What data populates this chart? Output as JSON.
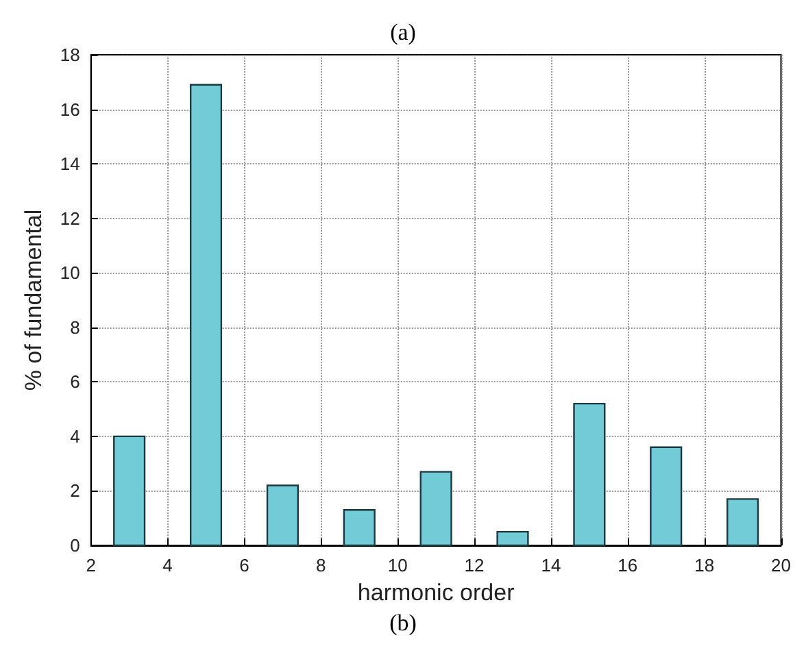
{
  "chart_data": {
    "type": "bar",
    "title": "(a)",
    "annotations": [
      "(b)"
    ],
    "xlabel": "harmonic order",
    "ylabel": "% of fundamental",
    "x": [
      3,
      5,
      7,
      9,
      11,
      13,
      15,
      17,
      19
    ],
    "values": [
      4.0,
      16.9,
      2.2,
      1.3,
      2.7,
      0.5,
      5.2,
      3.6,
      1.7
    ],
    "color": "#72ccd8",
    "xlim": [
      2,
      20
    ],
    "xticks": [
      2,
      4,
      6,
      8,
      10,
      12,
      14,
      16,
      18,
      20
    ],
    "ylim": [
      0,
      18
    ],
    "yticks": [
      0,
      2,
      4,
      6,
      8,
      10,
      12,
      14,
      16,
      18
    ],
    "grid": true
  }
}
